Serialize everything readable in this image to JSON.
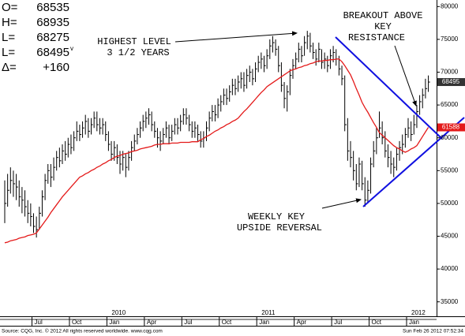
{
  "chart_data": {
    "type": "ohlc",
    "quote_panel": [
      {
        "label": "O=",
        "value": "68535"
      },
      {
        "label": "H=",
        "value": "68935"
      },
      {
        "label": "L=",
        "value": "68275"
      },
      {
        "label": "L=",
        "value": "68495",
        "flag": "v"
      },
      {
        "label": "Δ=",
        "value": "+160"
      }
    ],
    "annotations": [
      {
        "lines": [
          "HIGHEST LEVEL",
          "3 1/2 YEARS"
        ]
      },
      {
        "lines": [
          "BREAKOUT ABOVE",
          "KEY",
          "RESISTANCE"
        ]
      },
      {
        "lines": [
          "WEEKLY KEY",
          "UPSIDE REVERSAL"
        ]
      }
    ],
    "categories": [
      null,
      null,
      null,
      null,
      null,
      null,
      null,
      null,
      null,
      null,
      "Jul",
      null,
      null,
      null,
      null,
      null,
      null,
      null,
      null,
      null,
      null,
      null,
      null,
      "Oct",
      null,
      null,
      null,
      null,
      null,
      null,
      null,
      null,
      null,
      null,
      null,
      null,
      "Jan",
      null,
      null,
      null,
      null,
      null,
      null,
      null,
      null,
      null,
      null,
      null,
      null,
      "Apr",
      null,
      null,
      null,
      null,
      null,
      null,
      null,
      null,
      null,
      null,
      null,
      null,
      "Jul",
      null,
      null,
      null,
      null,
      null,
      null,
      null,
      null,
      null,
      null,
      null,
      null,
      "Oct",
      null,
      null,
      null,
      null,
      null,
      null,
      null,
      null,
      null,
      null,
      null,
      null,
      "Jan",
      null,
      null,
      null,
      null,
      null,
      null,
      null,
      null,
      null,
      null,
      null,
      null,
      "Apr",
      null,
      null,
      null,
      null,
      null,
      null,
      null,
      null,
      null,
      null,
      null,
      null,
      "Jul",
      null,
      null,
      null,
      null,
      null,
      null,
      null,
      null,
      null,
      null,
      null,
      null,
      "Oct",
      null,
      null,
      null,
      null,
      null,
      null,
      null,
      null,
      null,
      null,
      null,
      null,
      "Jan",
      null,
      null,
      null,
      null,
      null,
      null,
      null
    ],
    "year_labels": [
      null,
      null,
      null,
      null,
      null,
      null,
      null,
      null,
      null,
      null,
      null,
      null,
      null,
      null,
      null,
      null,
      null,
      null,
      null,
      null,
      null,
      null,
      null,
      null,
      null,
      null,
      null,
      null,
      null,
      null,
      null,
      null,
      null,
      null,
      null,
      null,
      "2010",
      null,
      null,
      null,
      null,
      null,
      null,
      null,
      null,
      null,
      null,
      null,
      null,
      null,
      null,
      null,
      null,
      null,
      null,
      null,
      null,
      null,
      null,
      null,
      null,
      null,
      null,
      null,
      null,
      null,
      null,
      null,
      null,
      null,
      null,
      null,
      null,
      null,
      null,
      null,
      null,
      null,
      null,
      null,
      null,
      null,
      null,
      null,
      null,
      null,
      null,
      null,
      "2011",
      null,
      null,
      null,
      null,
      null,
      null,
      null,
      null,
      null,
      null,
      null,
      null,
      null,
      null,
      null,
      null,
      null,
      null,
      null,
      null,
      null,
      null,
      null,
      null,
      null,
      null,
      null,
      null,
      null,
      null,
      null,
      null,
      null,
      null,
      null,
      null,
      null,
      null,
      null,
      null,
      null,
      null,
      null,
      null,
      null,
      null,
      null,
      null,
      null,
      null,
      null,
      "2012",
      null,
      null,
      null,
      null,
      null,
      null,
      null
    ],
    "series": [
      {
        "type": "ohlc",
        "color": "#000000",
        "high": [
          53500,
          54500,
          55500,
          55000,
          54500,
          53500,
          52500,
          52000,
          50500,
          50000,
          48500,
          48000,
          49500,
          52000,
          54500,
          56000,
          56000,
          57000,
          58000,
          58500,
          59000,
          59500,
          60000,
          60500,
          61000,
          62500,
          62000,
          62500,
          63500,
          63000,
          63000,
          64000,
          64000,
          63000,
          63000,
          62500,
          61000,
          59500,
          59500,
          59000,
          58000,
          58000,
          57500,
          58000,
          59500,
          60500,
          61500,
          62500,
          63500,
          64000,
          64500,
          64000,
          62500,
          61500,
          61000,
          61500,
          62500,
          62000,
          62000,
          63000,
          63000,
          63500,
          64500,
          64500,
          63500,
          62500,
          62500,
          62000,
          61000,
          61000,
          62500,
          64000,
          65000,
          65000,
          66000,
          66500,
          67500,
          67500,
          68000,
          69000,
          69000,
          69500,
          70000,
          70000,
          70500,
          71000,
          70500,
          71500,
          72500,
          73000,
          72500,
          73500,
          75000,
          75500,
          75000,
          74000,
          71500,
          68500,
          68000,
          70500,
          72000,
          73000,
          74500,
          74000,
          75500,
          76300,
          76000,
          74500,
          73500,
          74500,
          73500,
          73000,
          72500,
          73500,
          74000,
          73500,
          72500,
          71000,
          69500,
          63000,
          59500,
          58000,
          56000,
          57000,
          56500,
          54000,
          53500,
          57000,
          59500,
          61500,
          64000,
          62500,
          61000,
          59000,
          58000,
          57000,
          58500,
          59500,
          60500,
          61500,
          63000,
          62500,
          63500,
          65000,
          66500,
          67500,
          69000,
          69500
        ],
        "low": [
          47000,
          49500,
          51500,
          51000,
          50500,
          49500,
          48500,
          48000,
          47000,
          46500,
          45500,
          44800,
          46000,
          48000,
          50500,
          53000,
          52500,
          53500,
          55000,
          55500,
          56000,
          56500,
          57000,
          57500,
          58000,
          59500,
          59500,
          60000,
          60500,
          60000,
          60500,
          61500,
          61000,
          60500,
          60500,
          59500,
          58000,
          56500,
          56500,
          56000,
          54500,
          55000,
          54000,
          55000,
          56500,
          58000,
          59000,
          60000,
          61000,
          61500,
          62000,
          61000,
          60000,
          58500,
          58000,
          59000,
          60000,
          59000,
          59500,
          60500,
          60500,
          61000,
          62000,
          62000,
          61000,
          60000,
          60000,
          59500,
          58500,
          58500,
          59500,
          61000,
          62500,
          62500,
          63000,
          64000,
          65000,
          65000,
          65500,
          66500,
          66500,
          67000,
          67500,
          67000,
          67500,
          68500,
          68000,
          68500,
          70000,
          70500,
          70000,
          70500,
          72000,
          73000,
          72500,
          70000,
          67000,
          64500,
          64000,
          66500,
          69000,
          70500,
          71500,
          71500,
          72500,
          73500,
          73000,
          72000,
          71000,
          71500,
          70500,
          70500,
          70000,
          70500,
          71500,
          71000,
          69500,
          68000,
          61000,
          56500,
          55500,
          53500,
          52000,
          52500,
          52000,
          49500,
          50000,
          51500,
          55500,
          57500,
          60000,
          59000,
          57000,
          55500,
          54500,
          54000,
          55000,
          56500,
          57500,
          58500,
          60000,
          59500,
          60500,
          61500,
          63500,
          64500,
          66000,
          67000
        ],
        "close": [
          50000,
          52000,
          53500,
          53000,
          52500,
          51000,
          50500,
          49500,
          48500,
          48000,
          46500,
          46000,
          48500,
          51000,
          53500,
          55000,
          54000,
          55500,
          57000,
          56500,
          58000,
          57500,
          59000,
          58500,
          60000,
          61000,
          60500,
          61500,
          62500,
          61000,
          62000,
          63000,
          62000,
          61500,
          62000,
          60500,
          59000,
          57500,
          58500,
          57000,
          56000,
          57000,
          55500,
          57000,
          58500,
          59500,
          60500,
          61500,
          62500,
          63000,
          63500,
          62000,
          61000,
          60000,
          59500,
          60500,
          61500,
          60000,
          61000,
          62000,
          61500,
          62500,
          63500,
          63000,
          62000,
          61000,
          61500,
          60500,
          59500,
          60000,
          61500,
          63000,
          64000,
          63500,
          65000,
          65500,
          66500,
          66000,
          67000,
          68000,
          67500,
          68500,
          69000,
          68000,
          69500,
          70000,
          69000,
          70500,
          71500,
          72000,
          71000,
          72500,
          74000,
          74500,
          73500,
          71000,
          68000,
          66000,
          67000,
          69500,
          71000,
          72000,
          73500,
          72500,
          74500,
          75500,
          74000,
          73000,
          72000,
          73500,
          71500,
          72000,
          71000,
          72500,
          73000,
          72000,
          70500,
          69000,
          62000,
          58000,
          57000,
          55000,
          53000,
          56000,
          53000,
          50500,
          52000,
          56000,
          58000,
          60000,
          61500,
          60000,
          58000,
          57000,
          56000,
          55500,
          57500,
          58500,
          59000,
          60500,
          61500,
          60500,
          62000,
          64000,
          65500,
          66500,
          67500,
          68495
        ]
      },
      {
        "type": "line",
        "color": "#e41a1a",
        "values": [
          44000,
          44100,
          44300,
          44400,
          44500,
          44700,
          44800,
          44900,
          45100,
          45200,
          45300,
          45500,
          46100,
          46700,
          47300,
          47900,
          48600,
          49200,
          49800,
          50400,
          51000,
          51500,
          52000,
          52500,
          53000,
          53500,
          54000,
          54200,
          54500,
          54700,
          55000,
          55200,
          55500,
          55700,
          56000,
          56200,
          56500,
          56700,
          57000,
          57200,
          57300,
          57500,
          57600,
          57700,
          57900,
          58000,
          58100,
          58300,
          58400,
          58500,
          58600,
          58700,
          58900,
          59000,
          59000,
          59100,
          59100,
          59100,
          59200,
          59200,
          59200,
          59300,
          59300,
          59300,
          59300,
          59400,
          59400,
          59400,
          59700,
          59900,
          60200,
          60400,
          60700,
          61000,
          61200,
          61500,
          61700,
          62000,
          62200,
          62500,
          62700,
          63000,
          63500,
          64000,
          64400,
          64900,
          65400,
          65900,
          66400,
          66900,
          67300,
          67800,
          68100,
          68400,
          68700,
          69000,
          69300,
          69600,
          69900,
          70200,
          70400,
          70500,
          70700,
          70800,
          71000,
          71100,
          71300,
          71400,
          71600,
          71700,
          71700,
          71800,
          71800,
          71900,
          71900,
          72000,
          72000,
          71600,
          71000,
          70300,
          69600,
          68600,
          67500,
          66500,
          65400,
          64600,
          63900,
          63100,
          62300,
          61600,
          60800,
          60400,
          60000,
          59600,
          59200,
          58800,
          58500,
          58300,
          58000,
          57800,
          58000,
          58300,
          58500,
          58800,
          59500,
          60200,
          60900,
          61588
        ]
      }
    ],
    "ylim": [
      32800,
      81000
    ],
    "yticks": [
      35000,
      40000,
      45000,
      50000,
      55000,
      60000,
      65000,
      70000,
      75000,
      80000
    ],
    "y_axis_side": "right",
    "grid": false,
    "source": "Source: CQG, Inc. © 2012 All rights reserved worldwide. www.cqg.com",
    "timestamp": "Sun Feb 26 2012 07:52:34"
  }
}
